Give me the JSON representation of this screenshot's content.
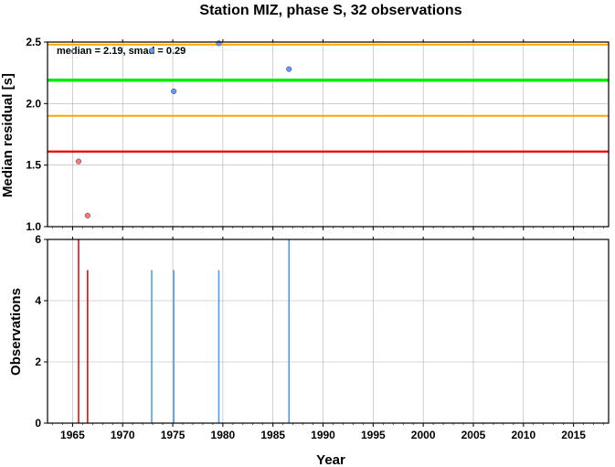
{
  "chart_data": {
    "title": "Station MIZ, phase S, 32 observations",
    "xlabel": "Year",
    "xlim": [
      1962.5,
      2018.5
    ],
    "xticks": [
      1965,
      1970,
      1975,
      1980,
      1985,
      1990,
      1995,
      2000,
      2005,
      2010,
      2015
    ],
    "panels": [
      {
        "name": "residual",
        "type": "scatter",
        "ylabel": "Median residual [s]",
        "ylim": [
          1.0,
          2.5
        ],
        "yticks": [
          "1.0",
          "1.5",
          "2.0",
          "2.5"
        ],
        "grid": true,
        "annotation": "median = 2.19, smad = 0.29",
        "hlines": [
          {
            "y": 2.48,
            "color": "#ffa500",
            "width": 2
          },
          {
            "y": 2.19,
            "color": "#00ee00",
            "width": 3.5
          },
          {
            "y": 1.9,
            "color": "#ffa500",
            "width": 2
          },
          {
            "y": 1.61,
            "color": "#ee1111",
            "width": 2.5
          }
        ],
        "points": [
          {
            "x": 1965.6,
            "y": 1.53,
            "color": "#ff7777"
          },
          {
            "x": 1966.5,
            "y": 1.09,
            "color": "#ff7777"
          },
          {
            "x": 1972.9,
            "y": 2.43,
            "color": "#6699ff"
          },
          {
            "x": 1975.1,
            "y": 2.1,
            "color": "#6699ff"
          },
          {
            "x": 1979.6,
            "y": 2.49,
            "color": "#6699ff"
          },
          {
            "x": 1986.6,
            "y": 2.28,
            "color": "#6699ff"
          }
        ]
      },
      {
        "name": "observations",
        "type": "bar",
        "ylabel": "Observations",
        "ylim": [
          0,
          6
        ],
        "yticks": [
          "0",
          "2",
          "4",
          "6"
        ],
        "grid": true,
        "bars": [
          {
            "x": 1965.6,
            "value": 6,
            "color": "#dd0000"
          },
          {
            "x": 1966.5,
            "value": 5,
            "color": "#dd0000"
          },
          {
            "x": 1972.9,
            "value": 5,
            "color": "#4499ee"
          },
          {
            "x": 1975.1,
            "value": 5,
            "color": "#4499ee"
          },
          {
            "x": 1979.6,
            "value": 5,
            "color": "#4499ee"
          },
          {
            "x": 1986.6,
            "value": 6,
            "color": "#4499ee"
          }
        ]
      }
    ]
  }
}
